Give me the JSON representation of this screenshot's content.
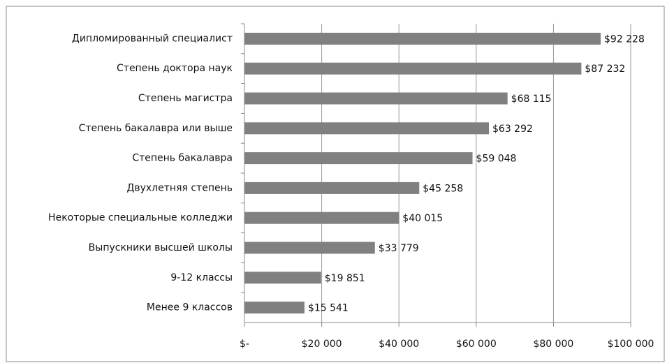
{
  "chart_data": {
    "type": "barh",
    "categories": [
      "Дипломированный специалист",
      "Степень доктора наук",
      "Степень магистра",
      "Степень бакалавра или выше",
      "Степень бакалавра",
      "Двухлетняя степень",
      "Некоторые специальные колледжи",
      "Выпускники высшей школы",
      "9-12 классы",
      "Менее 9 классов"
    ],
    "values": [
      92228,
      87232,
      68115,
      63292,
      59048,
      45258,
      40015,
      33779,
      19851,
      15541
    ],
    "value_labels": [
      "$92 228",
      "$87 232",
      "$68 115",
      "$63 292",
      "$59 048",
      "$45 258",
      "$40 015",
      "$33 779",
      "$19 851",
      "$15 541"
    ],
    "color": "#808080",
    "xlim": [
      0,
      100000
    ],
    "xticks": [
      {
        "value": 0,
        "label": "$-"
      },
      {
        "value": 20000,
        "label": "$20 000"
      },
      {
        "value": 40000,
        "label": "$40 000"
      },
      {
        "value": 60000,
        "label": "$60 000"
      },
      {
        "value": 80000,
        "label": "$80 000"
      },
      {
        "value": 100000,
        "label": "$100 000"
      }
    ],
    "grid": true
  }
}
